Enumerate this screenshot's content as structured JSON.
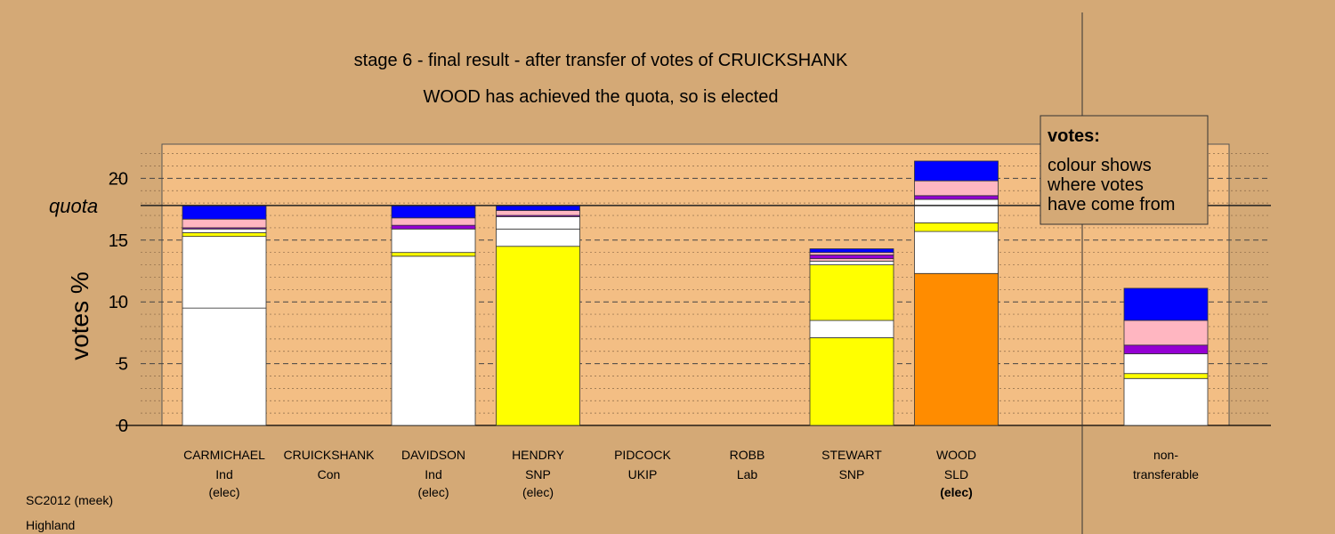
{
  "chart_data": {
    "type": "bar",
    "title": "stage 6 - final result - after transfer of votes of CRUICKSHANK",
    "subtitle": "WOOD has achieved the quota, so is elected",
    "ylabel": "votes %",
    "ylim": [
      0,
      22.5
    ],
    "yticks": [
      "0",
      "5",
      "10",
      "15",
      "20"
    ],
    "quota": 17.8,
    "quota_label": "quota",
    "candidates": [
      {
        "name": "CARMICHAEL",
        "party": "Ind",
        "status": "(elec)",
        "status_bold": false,
        "segments": [
          {
            "value": 9.5,
            "color": "#ffffff"
          },
          {
            "value": 5.8,
            "color": "#ffffff"
          },
          {
            "value": 0.3,
            "color": "#ffff00"
          },
          {
            "value": 0.3,
            "color": "#ffffff"
          },
          {
            "value": 0.1,
            "color": "#9400d3"
          },
          {
            "value": 0.7,
            "color": "#ffb6c1"
          },
          {
            "value": 1.1,
            "color": "#0000ff"
          }
        ]
      },
      {
        "name": "CRUICKSHANK",
        "party": "Con",
        "status": "",
        "status_bold": false,
        "segments": []
      },
      {
        "name": "DAVIDSON",
        "party": "Ind",
        "status": "(elec)",
        "status_bold": false,
        "segments": [
          {
            "value": 13.7,
            "color": "#ffffff"
          },
          {
            "value": 0.3,
            "color": "#ffff00"
          },
          {
            "value": 1.9,
            "color": "#ffffff"
          },
          {
            "value": 0.3,
            "color": "#9400d3"
          },
          {
            "value": 0.6,
            "color": "#ffb6c1"
          },
          {
            "value": 1.0,
            "color": "#0000ff"
          }
        ]
      },
      {
        "name": "HENDRY",
        "party": "SNP",
        "status": "(elec)",
        "status_bold": false,
        "segments": [
          {
            "value": 14.5,
            "color": "#ffff00"
          },
          {
            "value": 1.4,
            "color": "#ffffff"
          },
          {
            "value": 1.0,
            "color": "#ffffff"
          },
          {
            "value": 0.1,
            "color": "#9400d3"
          },
          {
            "value": 0.4,
            "color": "#ffb6c1"
          },
          {
            "value": 0.4,
            "color": "#0000ff"
          }
        ]
      },
      {
        "name": "PIDCOCK",
        "party": "UKIP",
        "status": "",
        "status_bold": false,
        "segments": []
      },
      {
        "name": "ROBB",
        "party": "Lab",
        "status": "",
        "status_bold": false,
        "segments": []
      },
      {
        "name": "STEWART",
        "party": "SNP",
        "status": "",
        "status_bold": false,
        "segments": [
          {
            "value": 7.1,
            "color": "#ffff00"
          },
          {
            "value": 1.4,
            "color": "#ffffff"
          },
          {
            "value": 4.5,
            "color": "#ffff00"
          },
          {
            "value": 0.3,
            "color": "#ffffff"
          },
          {
            "value": 0.2,
            "color": "#ffb6c1"
          },
          {
            "value": 0.3,
            "color": "#9400d3"
          },
          {
            "value": 0.2,
            "color": "#ffb6c1"
          },
          {
            "value": 0.3,
            "color": "#0000ff"
          }
        ]
      },
      {
        "name": "WOOD",
        "party": "SLD",
        "status": "(elec)",
        "status_bold": true,
        "segments": [
          {
            "value": 12.3,
            "color": "#ff8c00"
          },
          {
            "value": 3.4,
            "color": "#ffffff"
          },
          {
            "value": 0.7,
            "color": "#ffff00"
          },
          {
            "value": 1.9,
            "color": "#ffffff"
          },
          {
            "value": 0.3,
            "color": "#9400d3"
          },
          {
            "value": 1.2,
            "color": "#ffb6c1"
          },
          {
            "value": 1.6,
            "color": "#0000ff"
          }
        ]
      }
    ],
    "nontransferable": {
      "label_line1": "non-",
      "label_line2": "transferable",
      "segments": [
        {
          "value": 3.8,
          "color": "#ffffff"
        },
        {
          "value": 0.4,
          "color": "#ffff00"
        },
        {
          "value": 1.6,
          "color": "#ffffff"
        },
        {
          "value": 0.7,
          "color": "#9400d3"
        },
        {
          "value": 2.0,
          "color": "#ffb6c1"
        },
        {
          "value": 2.6,
          "color": "#0000ff"
        }
      ]
    },
    "legend": {
      "title": "votes:",
      "lines": [
        "colour shows",
        "where votes",
        "have come from"
      ]
    },
    "colors": {
      "background": "#d4a976",
      "plot_area": "#f3be84",
      "gridline": "#555555"
    }
  },
  "footer": {
    "source": "SC2012 (meek)",
    "region": "Highland"
  }
}
